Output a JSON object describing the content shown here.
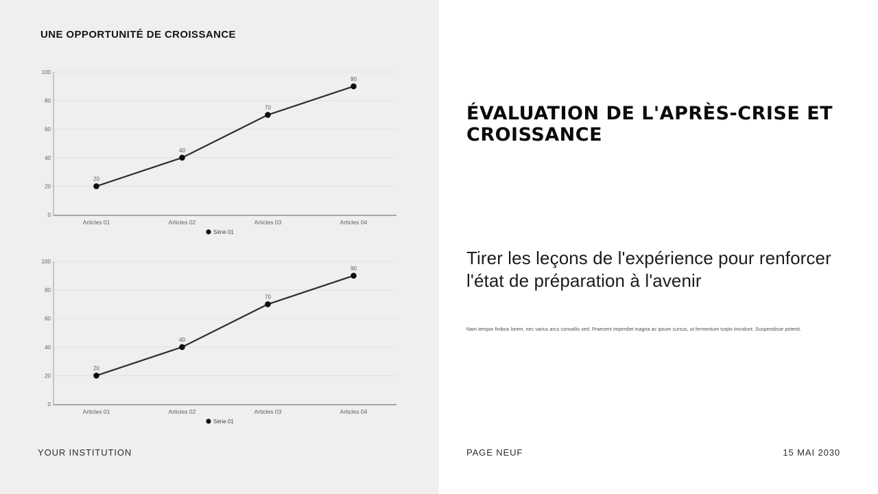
{
  "slide": {
    "left_title": "UNE OPPORTUNITÉ DE CROISSANCE",
    "right_title": "ÉVALUATION DE L'APRÈS-CRISE ET CROISSANCE",
    "right_subtitle": "Tirer les leçons de l'expérience pour renforcer l'état de préparation à l'avenir",
    "right_body": "Nam tempor finibus lorem, nec varius arcu convallis sed. Praesent imperdiet magna ac ipsum cursus, ut fermentum turpis tincidunt. Suspendisse potenti.",
    "footer_left": "YOUR INSTITUTION",
    "footer_center": "PAGE NEUF",
    "footer_right": "15 MAI 2030"
  },
  "colors": {
    "panel_left_bg": "#efefef",
    "panel_right_bg": "#ffffff",
    "gridline": "#e1e1e1",
    "axis_line": "#969696",
    "y_axis_line": "#aeaeae",
    "tick_text": "#5e5e5e",
    "series_line": "#2d2d2d",
    "marker": "#0f0f0f",
    "value_label": "#555555",
    "legend_text": "#454545",
    "title_text": "#0a0a0a"
  },
  "chart_data": [
    {
      "type": "line",
      "title": "",
      "categories": [
        "Articles 01",
        "Articles 02",
        "Articles 03",
        "Articles 04"
      ],
      "series": [
        {
          "name": "Série 01",
          "values": [
            20,
            40,
            70,
            90
          ]
        }
      ],
      "data_labels": [
        "20",
        "40",
        "70",
        "90"
      ],
      "xlabel": "",
      "ylabel": "",
      "ylim": [
        0,
        100
      ],
      "yticks": [
        0,
        20,
        40,
        60,
        80,
        100
      ],
      "grid": true,
      "legend_position": "bottom",
      "legend_label": "Série 01"
    },
    {
      "type": "line",
      "title": "",
      "categories": [
        "Articles 01",
        "Articles 02",
        "Articles 03",
        "Articles 04"
      ],
      "series": [
        {
          "name": "Série 01",
          "values": [
            20,
            40,
            70,
            90
          ]
        }
      ],
      "data_labels": [
        "20",
        "40",
        "70",
        "90"
      ],
      "xlabel": "",
      "ylabel": "",
      "ylim": [
        0,
        100
      ],
      "yticks": [
        0,
        20,
        40,
        60,
        80,
        100
      ],
      "grid": true,
      "legend_position": "bottom",
      "legend_label": "Série 01"
    }
  ]
}
